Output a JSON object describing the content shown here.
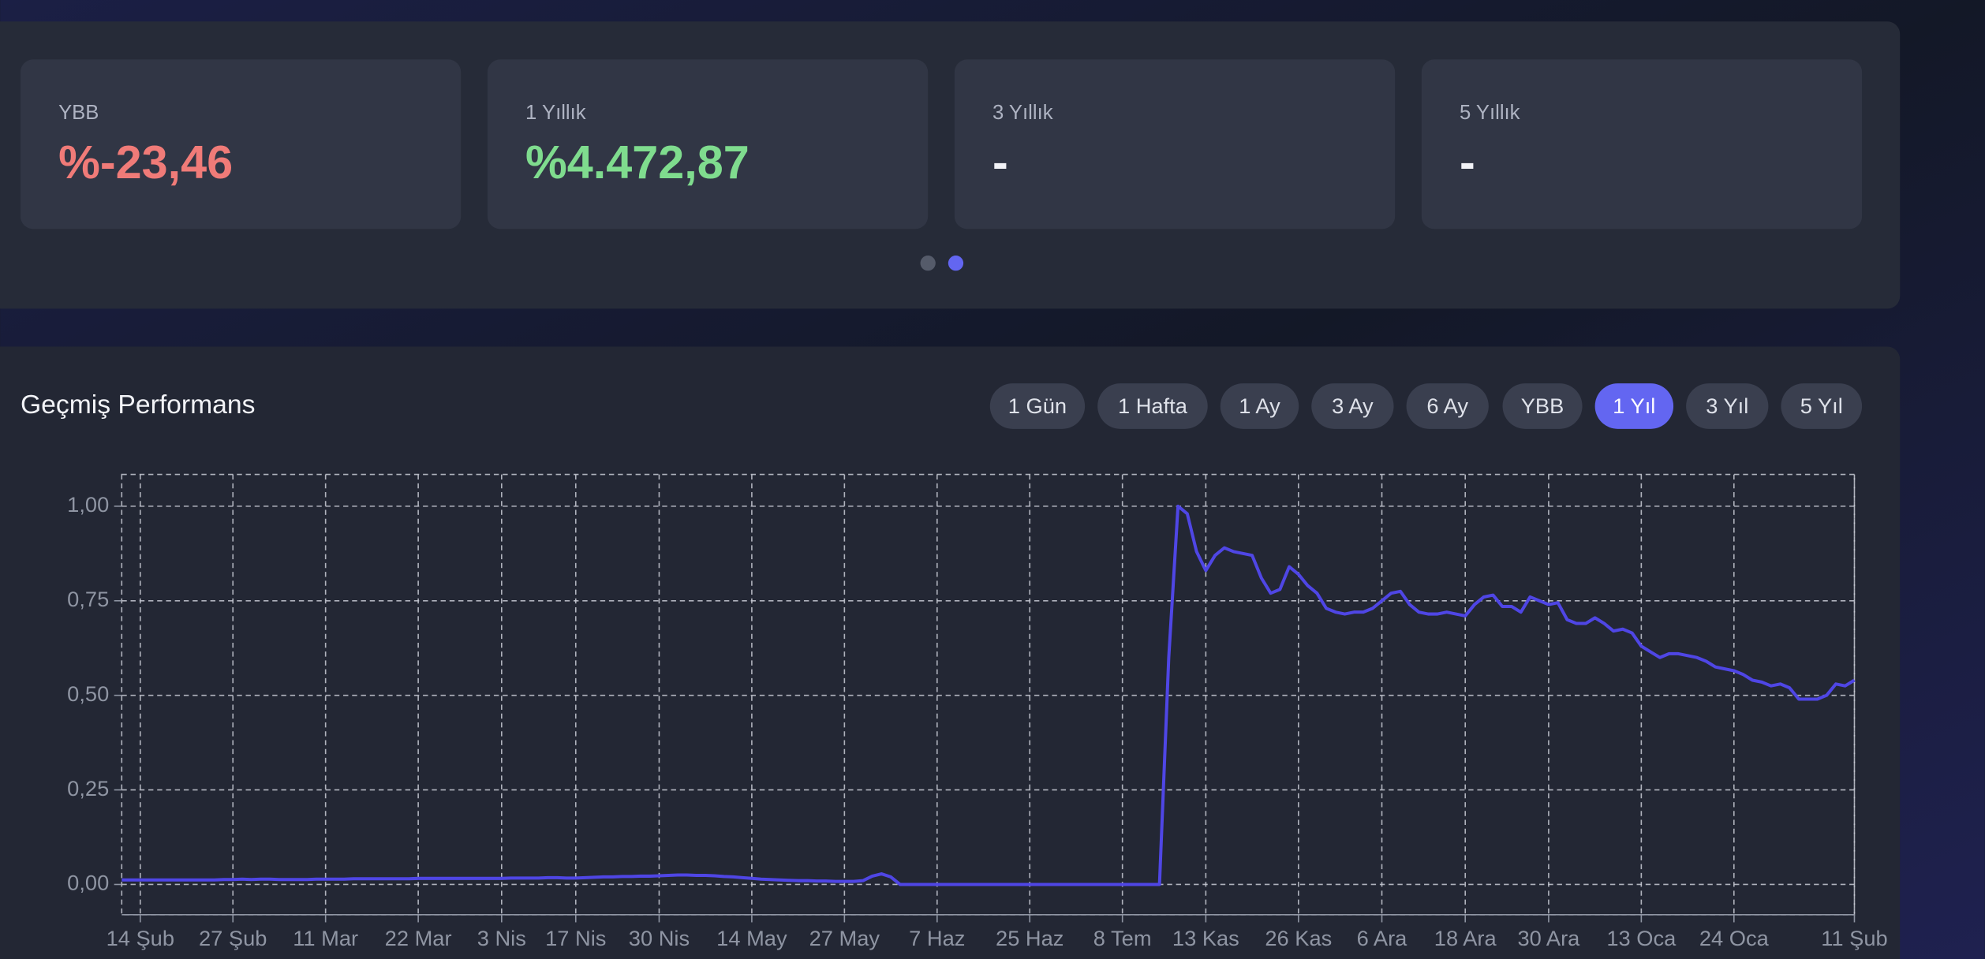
{
  "stats": [
    {
      "label": "YBB",
      "value": "%-23,46"
    },
    {
      "label": "1 Yıllık",
      "value": "%4.472,87"
    },
    {
      "label": "3 Yıllık",
      "value": "-"
    },
    {
      "label": "5 Yıllık",
      "value": "-"
    }
  ],
  "performance": {
    "title": "Geçmiş Performans",
    "ranges": [
      "1 Gün",
      "1 Hafta",
      "1 Ay",
      "3 Ay",
      "6 Ay",
      "YBB",
      "1 Yıl",
      "3 Yıl",
      "5 Yıl"
    ]
  },
  "chart_data": {
    "type": "line",
    "categories": [
      null,
      null,
      "14 Şub",
      null,
      null,
      null,
      null,
      null,
      null,
      null,
      null,
      null,
      "27 Şub",
      null,
      null,
      null,
      null,
      null,
      null,
      null,
      null,
      null,
      "11 Mar",
      null,
      null,
      null,
      null,
      null,
      null,
      null,
      null,
      null,
      "22 Mar",
      null,
      null,
      null,
      null,
      null,
      null,
      null,
      null,
      "3 Nis",
      null,
      null,
      null,
      null,
      null,
      null,
      null,
      "17 Nis",
      null,
      null,
      null,
      null,
      null,
      null,
      null,
      null,
      "30 Nis",
      null,
      null,
      null,
      null,
      null,
      null,
      null,
      null,
      null,
      "14 May",
      null,
      null,
      null,
      null,
      null,
      null,
      null,
      null,
      null,
      "27 May",
      null,
      null,
      null,
      null,
      null,
      null,
      null,
      null,
      null,
      "7 Haz",
      null,
      null,
      null,
      null,
      null,
      null,
      null,
      null,
      null,
      "25 Haz",
      null,
      null,
      null,
      null,
      null,
      null,
      null,
      null,
      null,
      "8 Tem",
      null,
      null,
      null,
      null,
      null,
      null,
      null,
      null,
      "13 Kas",
      null,
      null,
      null,
      null,
      null,
      null,
      null,
      null,
      null,
      "26 Kas",
      null,
      null,
      null,
      null,
      null,
      null,
      null,
      null,
      "6 Ara",
      null,
      null,
      null,
      null,
      null,
      null,
      null,
      null,
      "18 Ara",
      null,
      null,
      null,
      null,
      null,
      null,
      null,
      null,
      "30 Ara",
      null,
      null,
      null,
      null,
      null,
      null,
      null,
      null,
      null,
      "13 Oca",
      null,
      null,
      null,
      null,
      null,
      null,
      null,
      null,
      null,
      "24 Oca",
      null,
      null,
      null,
      null,
      null,
      null,
      null,
      null,
      null,
      null,
      null,
      null,
      "11 Şub"
    ],
    "series": [
      {
        "color": "#4f46e5",
        "values": [
          0.012,
          0.012,
          0.012,
          0.012,
          0.012,
          0.012,
          0.012,
          0.012,
          0.012,
          0.012,
          0.012,
          0.013,
          0.013,
          0.014,
          0.013,
          0.014,
          0.014,
          0.013,
          0.013,
          0.013,
          0.013,
          0.014,
          0.014,
          0.014,
          0.014,
          0.015,
          0.015,
          0.015,
          0.015,
          0.015,
          0.015,
          0.015,
          0.016,
          0.016,
          0.016,
          0.016,
          0.016,
          0.016,
          0.016,
          0.016,
          0.016,
          0.016,
          0.017,
          0.017,
          0.017,
          0.017,
          0.018,
          0.018,
          0.017,
          0.017,
          0.018,
          0.019,
          0.02,
          0.02,
          0.021,
          0.021,
          0.022,
          0.022,
          0.023,
          0.024,
          0.025,
          0.025,
          0.024,
          0.024,
          0.023,
          0.021,
          0.02,
          0.018,
          0.016,
          0.014,
          0.013,
          0.012,
          0.011,
          0.01,
          0.01,
          0.009,
          0.009,
          0.008,
          0.008,
          0.008,
          0.01,
          0.022,
          0.028,
          0.02,
          0,
          0,
          0,
          0,
          0,
          0,
          0,
          0,
          0,
          0,
          0,
          0,
          0,
          0,
          0,
          0,
          0,
          0,
          0,
          0,
          0,
          0,
          0,
          0,
          0,
          0,
          0,
          0,
          0,
          0.6,
          1.0,
          0.98,
          0.88,
          0.83,
          0.87,
          0.89,
          0.88,
          0.875,
          0.87,
          0.81,
          0.77,
          0.78,
          0.84,
          0.82,
          0.79,
          0.77,
          0.73,
          0.72,
          0.715,
          0.72,
          0.72,
          0.73,
          0.75,
          0.77,
          0.775,
          0.74,
          0.72,
          0.715,
          0.715,
          0.72,
          0.715,
          0.71,
          0.74,
          0.76,
          0.765,
          0.735,
          0.735,
          0.72,
          0.76,
          0.75,
          0.74,
          0.745,
          0.7,
          0.69,
          0.69,
          0.705,
          0.69,
          0.67,
          0.675,
          0.665,
          0.63,
          0.615,
          0.6,
          0.61,
          0.61,
          0.605,
          0.6,
          0.59,
          0.575,
          0.57,
          0.565,
          0.555,
          0.54,
          0.535,
          0.525,
          0.53,
          0.52,
          0.49,
          0.49,
          0.49,
          0.5,
          0.53,
          0.525,
          0.54
        ]
      }
    ],
    "ylim": [
      -0.08,
      1.084
    ],
    "yticks": [
      {
        "value": 0,
        "label": "0,00"
      },
      {
        "value": 0.25,
        "label": "0,25"
      },
      {
        "value": 0.5,
        "label": "0,50"
      },
      {
        "value": 0.75,
        "label": "0,75"
      },
      {
        "value": 1,
        "label": "1,00"
      }
    ],
    "grid": true
  }
}
